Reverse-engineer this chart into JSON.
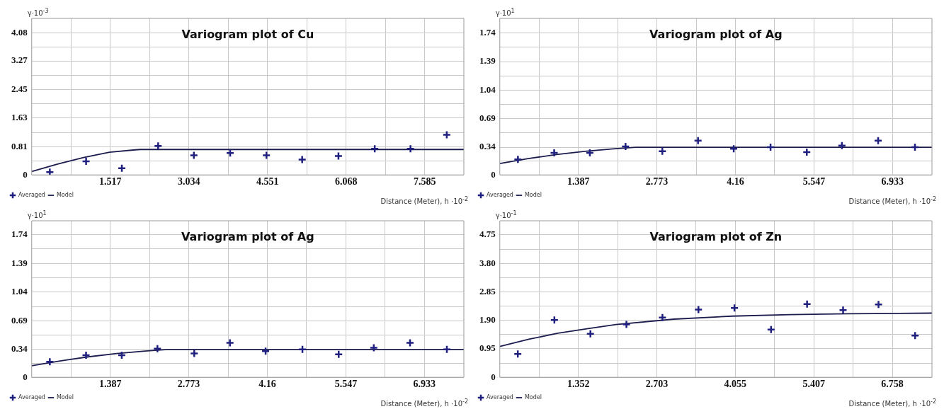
{
  "chart_data": [
    {
      "type": "scatter",
      "title": "Variogram plot of Cu",
      "ylabel": "γ·10$^{-3}$",
      "xlabel": "Distance (Meter), h ·10$^{-2}$",
      "xlim": [
        0,
        8.34
      ],
      "ylim": [
        0,
        4.49
      ],
      "xticks": [
        {
          "value": 0.7585,
          "label": null
        },
        1.517,
        {
          "value": 2.2755,
          "label": null
        },
        3.034,
        {
          "value": 3.7925,
          "label": null
        },
        4.551,
        {
          "value": 5.3095,
          "label": null
        },
        6.068,
        {
          "value": 6.8265,
          "label": null
        },
        7.585
      ],
      "yticks": [
        0,
        {
          "value": 0.405,
          "label": null
        },
        0.81,
        {
          "value": 1.22,
          "label": null
        },
        1.63,
        {
          "value": 2.04,
          "label": null
        },
        2.45,
        {
          "value": 2.86,
          "label": null
        },
        3.27,
        {
          "value": 3.675,
          "label": null
        },
        4.08
      ],
      "grid": true,
      "legend": "bottom left",
      "line_style": "solid",
      "series": [
        {
          "name": "Model",
          "type": "line",
          "marker": "none",
          "color": "#1c1c4e",
          "x": [
            0,
            0.5,
            1.0,
            1.5,
            2.0,
            2.1,
            8.34
          ],
          "values": [
            0.1,
            0.31,
            0.5,
            0.65,
            0.72,
            0.73,
            0.73
          ]
        },
        {
          "name": "Averaged",
          "type": "scatter",
          "marker": "cross",
          "color": "#1f1f80",
          "x": [
            0.35,
            1.05,
            1.74,
            2.44,
            3.13,
            3.83,
            4.53,
            5.22,
            5.92,
            6.62,
            7.31,
            8.01
          ],
          "values": [
            0.08,
            0.39,
            0.19,
            0.83,
            0.56,
            0.63,
            0.56,
            0.44,
            0.54,
            0.75,
            0.75,
            1.15
          ]
        }
      ]
    },
    {
      "type": "scatter",
      "title": "Variogram plot of Ag",
      "ylabel": "γ·10$^{1}$",
      "xlabel": "Distance (Meter), h ·10$^{-2}$",
      "xlim": [
        0,
        7.63
      ],
      "ylim": [
        0,
        1.92
      ],
      "xticks": [
        {
          "value": 0.6935,
          "label": null
        },
        1.387,
        {
          "value": 2.08,
          "label": null
        },
        2.773,
        {
          "value": 3.4665,
          "label": null
        },
        4.16,
        {
          "value": 4.8535,
          "label": null
        },
        5.547,
        {
          "value": 6.24,
          "label": null
        },
        6.933
      ],
      "yticks": [
        0,
        {
          "value": 0.17,
          "label": null
        },
        0.34,
        {
          "value": 0.515,
          "label": null
        },
        0.69,
        {
          "value": 0.865,
          "label": null
        },
        1.04,
        {
          "value": 1.215,
          "label": null
        },
        1.39,
        {
          "value": 1.565,
          "label": null
        },
        1.74
      ],
      "grid": true,
      "legend": "bottom left",
      "line_style": "solid",
      "series": [
        {
          "name": "Model",
          "type": "line",
          "marker": "none",
          "color": "#1c1c4e",
          "x": [
            0,
            0.5,
            1.0,
            1.5,
            2.0,
            2.4,
            7.63
          ],
          "values": [
            0.14,
            0.2,
            0.25,
            0.29,
            0.32,
            0.34,
            0.34
          ]
        },
        {
          "name": "Averaged",
          "type": "scatter",
          "marker": "cross",
          "color": "#1f1f80",
          "x": [
            0.32,
            0.96,
            1.59,
            2.22,
            2.87,
            3.5,
            4.13,
            4.78,
            5.42,
            6.04,
            6.68,
            7.33
          ],
          "values": [
            0.19,
            0.27,
            0.27,
            0.35,
            0.29,
            0.42,
            0.32,
            0.34,
            0.28,
            0.36,
            0.42,
            0.34
          ]
        }
      ]
    },
    {
      "type": "scatter",
      "title": "Variogram plot of Ag",
      "ylabel": "γ·10$^{1}$",
      "xlabel": "Distance (Meter), h ·10$^{-2}$",
      "xlim": [
        0,
        7.63
      ],
      "ylim": [
        0,
        1.91
      ],
      "xticks": [
        {
          "value": 0.6935,
          "label": null
        },
        1.387,
        {
          "value": 2.08,
          "label": null
        },
        2.773,
        {
          "value": 3.4665,
          "label": null
        },
        4.16,
        {
          "value": 4.8535,
          "label": null
        },
        5.547,
        {
          "value": 6.24,
          "label": null
        },
        6.933
      ],
      "yticks": [
        0,
        {
          "value": 0.17,
          "label": null
        },
        0.34,
        {
          "value": 0.515,
          "label": null
        },
        0.69,
        {
          "value": 0.865,
          "label": null
        },
        1.04,
        {
          "value": 1.215,
          "label": null
        },
        1.39,
        {
          "value": 1.565,
          "label": null
        },
        1.74
      ],
      "grid": true,
      "legend": "bottom left",
      "line_style": "solid",
      "series": [
        {
          "name": "Model",
          "type": "line",
          "marker": "none",
          "color": "#1c1c4e",
          "x": [
            0,
            0.5,
            1.0,
            1.5,
            2.0,
            2.4,
            7.63
          ],
          "values": [
            0.14,
            0.2,
            0.25,
            0.29,
            0.32,
            0.34,
            0.34
          ]
        },
        {
          "name": "Averaged",
          "type": "scatter",
          "marker": "cross",
          "color": "#1f1f80",
          "x": [
            0.32,
            0.96,
            1.59,
            2.22,
            2.87,
            3.5,
            4.13,
            4.78,
            5.42,
            6.04,
            6.68,
            7.33
          ],
          "values": [
            0.19,
            0.27,
            0.27,
            0.35,
            0.29,
            0.42,
            0.32,
            0.34,
            0.28,
            0.36,
            0.42,
            0.34
          ]
        }
      ]
    },
    {
      "type": "scatter",
      "title": "Variogram plot of Zn",
      "ylabel": "γ·10$^{-1}$",
      "xlabel": "Distance (Meter), h ·10$^{-2}$",
      "xlim": [
        0,
        7.44
      ],
      "ylim": [
        0,
        5.22
      ],
      "xticks": [
        {
          "value": 0.676,
          "label": null
        },
        1.352,
        {
          "value": 2.0275,
          "label": null
        },
        2.703,
        {
          "value": 3.379,
          "label": null
        },
        4.055,
        {
          "value": 4.731,
          "label": null
        },
        5.407,
        {
          "value": 6.0825,
          "label": null
        },
        6.758
      ],
      "yticks": [
        0,
        {
          "value": 0.475,
          "label": null
        },
        0.95,
        {
          "value": 1.425,
          "label": null
        },
        {
          "value": 1.9,
          "label": "1.90"
        },
        {
          "value": 2.375,
          "label": null
        },
        2.85,
        {
          "value": 3.325,
          "label": null
        },
        {
          "value": 3.8,
          "label": "3.80"
        },
        {
          "value": 4.275,
          "label": null
        },
        4.75
      ],
      "grid": true,
      "legend": "bottom left",
      "line_style": "solid",
      "series": [
        {
          "name": "Model",
          "type": "line",
          "marker": "none",
          "color": "#1c1c4e",
          "x": [
            0,
            0.5,
            1.0,
            1.5,
            2.0,
            3.0,
            4.0,
            5.0,
            6.0,
            7.44
          ],
          "values": [
            1.03,
            1.27,
            1.47,
            1.62,
            1.76,
            1.94,
            2.04,
            2.09,
            2.12,
            2.14
          ]
        },
        {
          "name": "Averaged",
          "type": "scatter",
          "marker": "cross",
          "color": "#1f1f80",
          "x": [
            0.31,
            0.94,
            1.56,
            2.18,
            2.8,
            3.42,
            4.04,
            4.67,
            5.29,
            5.91,
            6.52,
            7.15
          ],
          "values": [
            0.78,
            1.91,
            1.45,
            1.76,
            1.99,
            2.26,
            2.31,
            1.59,
            2.44,
            2.24,
            2.43,
            1.39
          ]
        }
      ]
    }
  ]
}
